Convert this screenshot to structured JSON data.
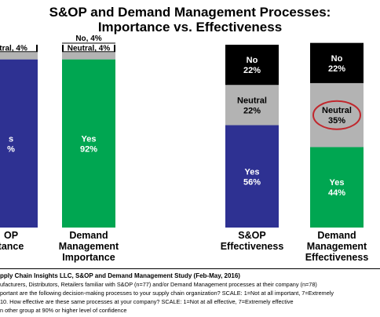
{
  "title_line1": "S&OP and Demand Management Processes:",
  "title_line2": "Importance vs. Effectiveness",
  "chart_data": {
    "type": "bar",
    "stacked": true,
    "colors": {
      "Yes": "#2e3192",
      "Neutral": "#b3b3b3",
      "No": "#000000",
      "YesGreen": "#00a651"
    },
    "bars": [
      {
        "id": "sop-importance",
        "label_lines": [
          "S&OP",
          "Importance"
        ],
        "label_visible": [
          "OP",
          "tance"
        ],
        "segments": [
          {
            "name": "Yes",
            "value": 92,
            "label_lines": [
              "s",
              "%"
            ],
            "color": "#2e3192"
          },
          {
            "name": "Neutral",
            "value": 4,
            "label": "utral, 4%",
            "color": "#b3b3b3"
          },
          {
            "name": "No",
            "value": 4,
            "label": "",
            "color": "#000000"
          }
        ]
      },
      {
        "id": "dm-importance",
        "label_lines": [
          "Demand",
          "Management",
          "Importance"
        ],
        "segments": [
          {
            "name": "Yes",
            "value": 92,
            "label_lines": [
              "Yes",
              "92%"
            ],
            "color": "#00a651"
          },
          {
            "name": "Neutral",
            "value": 4,
            "label": "Neutral, 4%",
            "color": "#b3b3b3"
          },
          {
            "name": "No",
            "value": 4,
            "label": "No, 4%",
            "color": "#000000"
          }
        ]
      },
      {
        "id": "sop-effectiveness",
        "label_lines": [
          "S&OP",
          "Effectiveness"
        ],
        "segments": [
          {
            "name": "Yes",
            "value": 56,
            "label_lines": [
              "Yes",
              "56%"
            ],
            "color": "#2e3192"
          },
          {
            "name": "Neutral",
            "value": 22,
            "label_lines": [
              "Neutral",
              "22%"
            ],
            "color": "#b3b3b3"
          },
          {
            "name": "No",
            "value": 22,
            "label_lines": [
              "No",
              "22%"
            ],
            "color": "#000000"
          }
        ]
      },
      {
        "id": "dm-effectiveness",
        "label_lines": [
          "Demand",
          "Management",
          "Effectiveness"
        ],
        "segments": [
          {
            "name": "Yes",
            "value": 44,
            "label_lines": [
              "Yes",
              "44%"
            ],
            "color": "#00a651"
          },
          {
            "name": "Neutral",
            "value": 35,
            "label_lines": [
              "Neutral",
              "35%"
            ],
            "color": "#b3b3b3",
            "circled": true
          },
          {
            "name": "No",
            "value": 22,
            "label_lines": [
              "No",
              "22%"
            ],
            "color": "#000000"
          }
        ]
      }
    ]
  },
  "footnotes": {
    "line1": "pply Chain Insights LLC, S&OP and Demand Management Study (Feb-May, 2016)",
    "line2": "ufacturers, Distributors, Retailers familiar with  S&OP (n=77) and/or Demand Management processes at their company (n=78)",
    "line3": "portant are the following decision-making processes to your supply chain organization? SCALE: 1=Not at all important, 7=Extremely",
    "line4": "10. How effective are these same processes at your company? SCALE: 1=Not at all effective, 7=Extremely effective",
    "line5": "n other group at 90% or higher level of confidence"
  }
}
